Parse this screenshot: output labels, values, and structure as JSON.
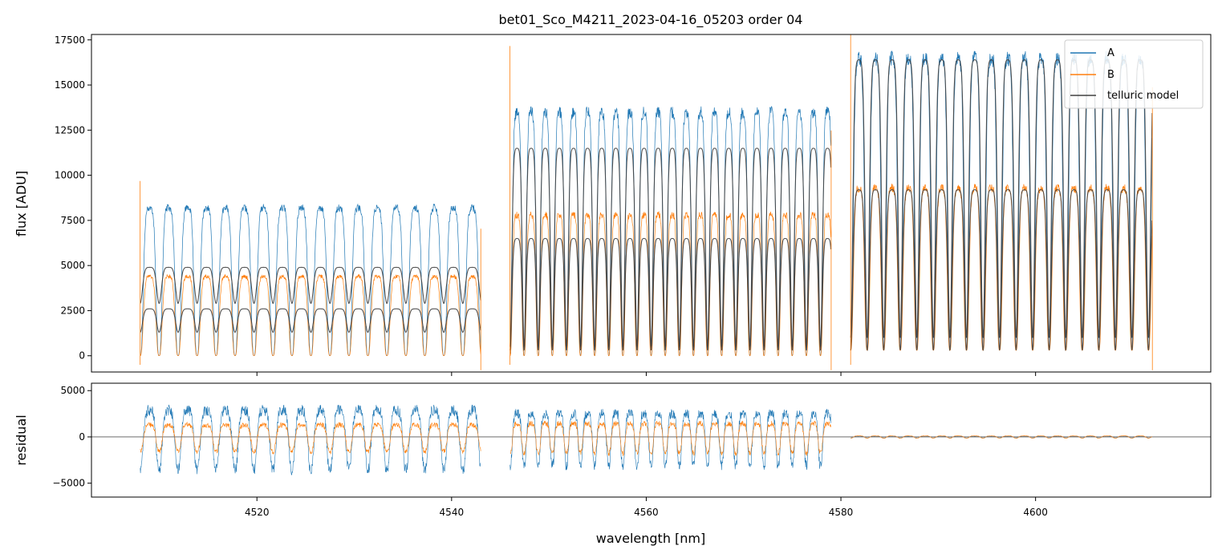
{
  "chart_data": {
    "type": "line",
    "title": "bet01_Sco_M4211_2023-04-16_05203  order 04",
    "xlabel": "wavelength [nm]",
    "colors": {
      "A": "#1f77b4",
      "B": "#ff7f0e",
      "telluric": "#404040",
      "zero_line": "#555555"
    },
    "top_panel": {
      "ylabel": "flux [ADU]",
      "xlim": [
        4503,
        4618
      ],
      "ylim": [
        -900,
        17800
      ],
      "yticks": [
        0,
        2500,
        5000,
        7500,
        10000,
        12500,
        15000,
        17500
      ],
      "ytick_labels": [
        "0",
        "2500",
        "5000",
        "7500",
        "10000",
        "12500",
        "15000",
        "17500"
      ]
    },
    "bottom_panel": {
      "ylabel": "residual",
      "xlim": [
        4503,
        4618
      ],
      "ylim": [
        -6500,
        5800
      ],
      "yticks": [
        -5000,
        0,
        5000
      ],
      "ytick_labels": [
        "−5000",
        "0",
        "5000"
      ]
    },
    "xticks": [
      4520,
      4540,
      4560,
      4580,
      4600
    ],
    "xtick_labels": [
      "4520",
      "4540",
      "4560",
      "4580",
      "4600"
    ],
    "legend": {
      "position": "upper-right",
      "entries": [
        "A",
        "B",
        "telluric model"
      ]
    },
    "segments": [
      {
        "x_start": 4508,
        "x_end": 4543,
        "period": 1.95,
        "A_peak": 8200,
        "B_peak": 4400,
        "A_dip": 0,
        "B_dip": 0,
        "tell_A_peak": 4900,
        "tell_A_dip": 2900,
        "tell_B_peak": 2600,
        "tell_B_dip": 1300,
        "resid_A_amp": 4000,
        "resid_B_amp": 1800
      },
      {
        "x_start": 4546,
        "x_end": 4579,
        "period": 1.45,
        "A_peak": 13500,
        "B_peak": 7800,
        "A_dip": 0,
        "B_dip": 0,
        "tell_A_peak": 11500,
        "tell_A_dip": 500,
        "tell_B_peak": 6500,
        "tell_B_dip": 300,
        "resid_A_amp": 3500,
        "resid_B_amp": 2000
      },
      {
        "x_start": 4581,
        "x_end": 4612,
        "period": 1.7,
        "A_peak": 16500,
        "B_peak": 9300,
        "A_dip": 1000,
        "B_dip": 300,
        "tell_A_peak": 16400,
        "tell_A_dip": 1000,
        "tell_B_peak": 9200,
        "tell_B_dip": 300,
        "resid_A_amp": 120,
        "resid_B_amp": 150
      }
    ]
  }
}
